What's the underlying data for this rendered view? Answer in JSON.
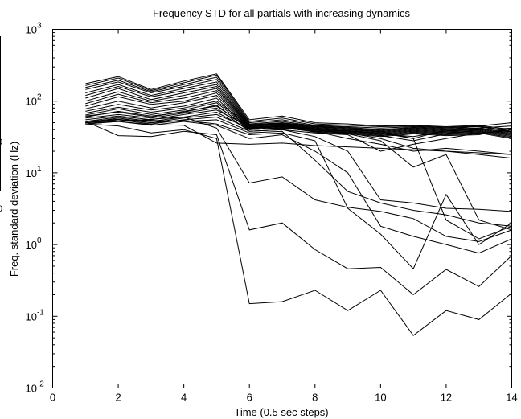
{
  "chart_data": {
    "type": "line",
    "title": "Frequency STD for all partials with increasing dynamics",
    "xlabel": "Time (0.5 sec steps)",
    "ylabel": "Freq. standard deviation (Hz)",
    "xlim": [
      0,
      14
    ],
    "ylim": [
      0.01,
      1000
    ],
    "yscale": "log",
    "grid": false,
    "x_ticks": [
      "0",
      "2",
      "4",
      "6",
      "8",
      "10",
      "12",
      "14"
    ],
    "y_ticks": [
      {
        "base": "10",
        "exp": "-2"
      },
      {
        "base": "10",
        "exp": "-1"
      },
      {
        "base": "10",
        "exp": "0"
      },
      {
        "base": "10",
        "exp": "1"
      },
      {
        "base": "10",
        "exp": "2"
      },
      {
        "base": "10",
        "exp": "3"
      }
    ],
    "x": [
      1,
      2,
      3,
      4,
      5,
      6,
      7,
      8,
      9,
      10,
      11,
      12,
      13,
      14
    ],
    "series": [
      {
        "values": [
          175,
          220,
          145,
          190,
          240,
          55,
          62,
          50,
          48,
          45,
          46,
          44,
          46,
          40
        ]
      },
      {
        "values": [
          165,
          210,
          140,
          180,
          230,
          52,
          58,
          48,
          46,
          44,
          45,
          43,
          45,
          38
        ]
      },
      {
        "values": [
          155,
          195,
          135,
          170,
          215,
          50,
          55,
          46,
          44,
          42,
          44,
          42,
          44,
          37
        ]
      },
      {
        "values": [
          145,
          185,
          130,
          160,
          200,
          48,
          52,
          45,
          43,
          40,
          43,
          41,
          42,
          36
        ]
      },
      {
        "values": [
          130,
          170,
          120,
          150,
          185,
          47,
          50,
          44,
          42,
          39,
          42,
          40,
          41,
          35
        ]
      },
      {
        "values": [
          120,
          160,
          115,
          140,
          170,
          46,
          49,
          43,
          41,
          38,
          41,
          39,
          40,
          34
        ]
      },
      {
        "values": [
          110,
          150,
          105,
          130,
          160,
          45,
          48,
          42,
          40,
          37,
          40,
          38,
          39,
          33
        ]
      },
      {
        "values": [
          100,
          135,
          100,
          120,
          150,
          44,
          47,
          41,
          39,
          36,
          39,
          37,
          38,
          32
        ]
      },
      {
        "values": [
          92,
          125,
          95,
          110,
          140,
          43,
          46,
          40,
          38,
          35,
          38,
          36,
          37,
          31
        ]
      },
      {
        "values": [
          85,
          115,
          90,
          100,
          130,
          42,
          45,
          39,
          37,
          34,
          37,
          35,
          36,
          30
        ]
      },
      {
        "values": [
          78,
          100,
          80,
          95,
          120,
          41,
          44,
          38,
          36,
          33,
          36,
          34,
          35,
          40
        ]
      },
      {
        "values": [
          72,
          90,
          75,
          85,
          110,
          40,
          43,
          37,
          35,
          32,
          35,
          33,
          34,
          42
        ]
      },
      {
        "values": [
          68,
          82,
          70,
          80,
          100,
          45,
          50,
          45,
          40,
          38,
          30,
          40,
          45,
          50
        ]
      },
      {
        "values": [
          64,
          78,
          65,
          75,
          95,
          42,
          46,
          42,
          38,
          35,
          32,
          38,
          42,
          45
        ]
      },
      {
        "values": [
          60,
          72,
          62,
          70,
          88,
          40,
          42,
          38,
          36,
          33,
          28,
          35,
          40,
          42
        ]
      },
      {
        "values": [
          58,
          65,
          58,
          68,
          80,
          38,
          40,
          36,
          34,
          20,
          25,
          30,
          36,
          38
        ]
      },
      {
        "values": [
          55,
          62,
          55,
          65,
          75,
          44,
          48,
          40,
          36,
          30,
          22,
          20,
          18,
          16
        ]
      },
      {
        "values": [
          52,
          60,
          52,
          60,
          70,
          40,
          42,
          38,
          30,
          25,
          20,
          22,
          20,
          18
        ]
      },
      {
        "values": [
          50,
          58,
          50,
          58,
          65,
          42,
          45,
          40,
          35,
          28,
          12,
          18,
          2.2,
          1.6
        ]
      },
      {
        "values": [
          50,
          55,
          48,
          55,
          60,
          38,
          40,
          32,
          20,
          4.2,
          3.8,
          3.2,
          3.1,
          2.9
        ]
      },
      {
        "values": [
          48,
          52,
          46,
          52,
          55,
          36,
          38,
          15,
          5.5,
          3.8,
          3.0,
          2.6,
          2.0,
          1.8
        ]
      },
      {
        "values": [
          62,
          70,
          60,
          72,
          85,
          42,
          44,
          40,
          38,
          36,
          30,
          2.2,
          1.2,
          1.8
        ]
      },
      {
        "values": [
          52,
          56,
          50,
          54,
          48,
          34,
          36,
          28,
          3.2,
          1.4,
          0.46,
          5.0,
          1.0,
          2.0
        ]
      },
      {
        "values": [
          50,
          55,
          54,
          52,
          46,
          30,
          34,
          20,
          10,
          1.8,
          1.3,
          1.0,
          0.76,
          1.2
        ]
      },
      {
        "values": [
          48,
          52,
          56,
          60,
          42,
          7.2,
          8.8,
          4.2,
          3.3,
          2.9,
          2.3,
          1.3,
          1.1,
          1.6
        ]
      },
      {
        "values": [
          52,
          33,
          32,
          38,
          34,
          1.6,
          2.0,
          0.85,
          0.46,
          0.48,
          0.2,
          0.45,
          0.26,
          0.7
        ]
      },
      {
        "values": [
          48,
          45,
          36,
          40,
          30,
          0.15,
          0.16,
          0.23,
          0.12,
          0.23,
          0.054,
          0.12,
          0.09,
          0.21
        ]
      },
      {
        "values": [
          50,
          52,
          47,
          46,
          26,
          25,
          26,
          24,
          23,
          22,
          21,
          20,
          19,
          18
        ]
      }
    ]
  },
  "stray_ticks": [
    "0",
    "0"
  ]
}
